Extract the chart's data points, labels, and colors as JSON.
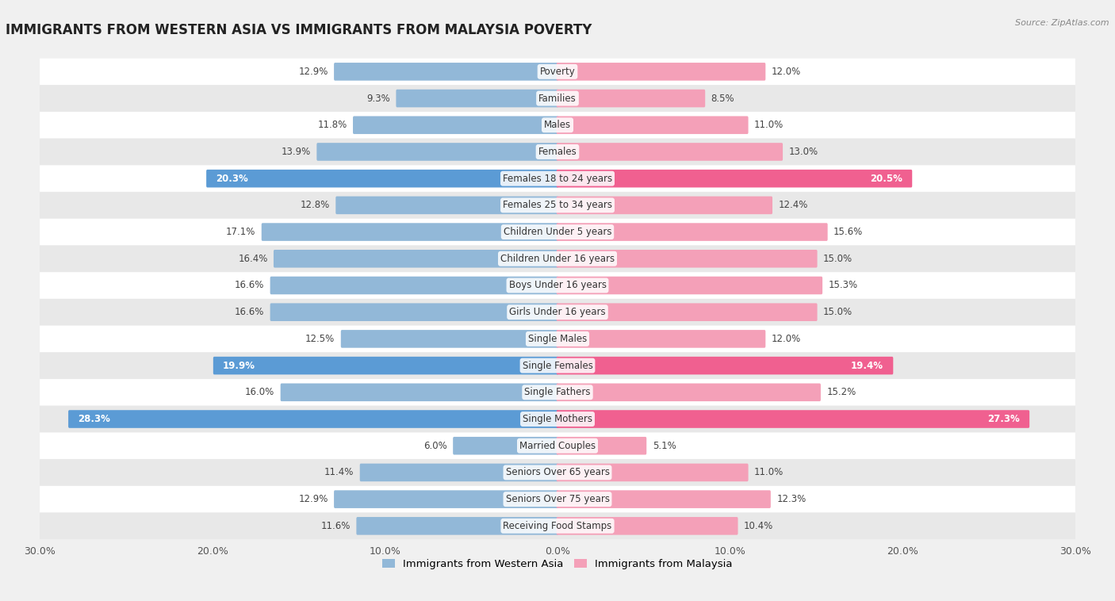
{
  "title": "IMMIGRANTS FROM WESTERN ASIA VS IMMIGRANTS FROM MALAYSIA POVERTY",
  "source": "Source: ZipAtlas.com",
  "categories": [
    "Poverty",
    "Families",
    "Males",
    "Females",
    "Females 18 to 24 years",
    "Females 25 to 34 years",
    "Children Under 5 years",
    "Children Under 16 years",
    "Boys Under 16 years",
    "Girls Under 16 years",
    "Single Males",
    "Single Females",
    "Single Fathers",
    "Single Mothers",
    "Married Couples",
    "Seniors Over 65 years",
    "Seniors Over 75 years",
    "Receiving Food Stamps"
  ],
  "western_asia": [
    12.9,
    9.3,
    11.8,
    13.9,
    20.3,
    12.8,
    17.1,
    16.4,
    16.6,
    16.6,
    12.5,
    19.9,
    16.0,
    28.3,
    6.0,
    11.4,
    12.9,
    11.6
  ],
  "malaysia": [
    12.0,
    8.5,
    11.0,
    13.0,
    20.5,
    12.4,
    15.6,
    15.0,
    15.3,
    15.0,
    12.0,
    19.4,
    15.2,
    27.3,
    5.1,
    11.0,
    12.3,
    10.4
  ],
  "color_western_asia": "#92b8d8",
  "color_malaysia": "#f4a0b8",
  "color_western_asia_highlight": "#5b9bd5",
  "color_malaysia_highlight": "#f06090",
  "highlight_rows": [
    4,
    11,
    13
  ],
  "background_color": "#f0f0f0",
  "row_bg_light": "#ffffff",
  "row_bg_dark": "#e8e8e8",
  "axis_max": 30.0,
  "legend_label_western": "Immigrants from Western Asia",
  "legend_label_malaysia": "Immigrants from Malaysia",
  "label_fontsize": 8.5,
  "title_fontsize": 12,
  "category_fontsize": 8.5
}
